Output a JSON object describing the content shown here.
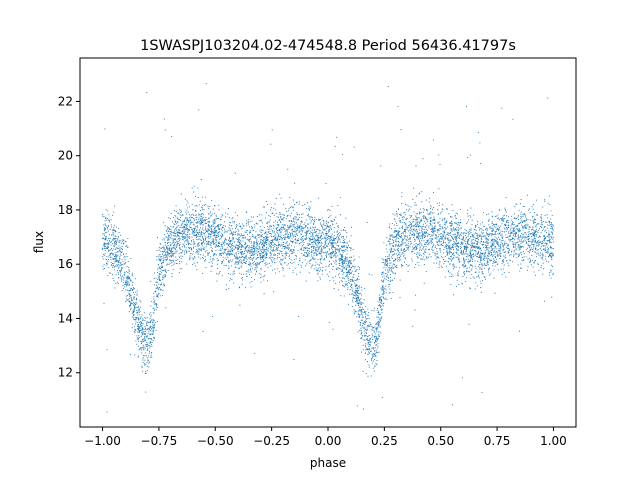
{
  "chart_data": {
    "type": "scatter",
    "title": "1SWASPJ103204.02-474548.8 Period 56436.41797s",
    "xlabel": "phase",
    "ylabel": "flux",
    "xlim": [
      -1.1,
      1.1
    ],
    "ylim": [
      10.0,
      23.6
    ],
    "xticks": [
      -1.0,
      -0.75,
      -0.5,
      -0.25,
      0.0,
      0.25,
      0.5,
      0.75,
      1.0
    ],
    "xtick_labels": [
      "−1.00",
      "−0.75",
      "−0.50",
      "−0.25",
      "0.00",
      "0.25",
      "0.50",
      "0.75",
      "1.00"
    ],
    "yticks": [
      12,
      14,
      16,
      18,
      20,
      22
    ],
    "ytick_labels": [
      "12",
      "14",
      "16",
      "18",
      "20",
      "22"
    ],
    "grid": false,
    "legend": "none",
    "marker_color": "#1f77b4",
    "series": [
      {
        "light_curve": {
          "phase": [
            -1.0,
            -0.95,
            -0.9,
            -0.85,
            -0.82,
            -0.8,
            -0.78,
            -0.75,
            -0.7,
            -0.65,
            -0.6,
            -0.55,
            -0.5,
            -0.45,
            -0.4,
            -0.35,
            -0.3,
            -0.25,
            -0.2,
            -0.15,
            -0.1,
            -0.05,
            0.0,
            0.05,
            0.1,
            0.15,
            0.18,
            0.2,
            0.22,
            0.25,
            0.3,
            0.35,
            0.4,
            0.45,
            0.5,
            0.55,
            0.6,
            0.65,
            0.7,
            0.75,
            0.8,
            0.85,
            0.9,
            0.95,
            1.0
          ],
          "flux": [
            16.9,
            16.6,
            15.8,
            14.2,
            13.2,
            12.9,
            13.6,
            15.6,
            16.8,
            17.1,
            17.2,
            17.2,
            17.0,
            16.8,
            16.6,
            16.5,
            16.6,
            16.8,
            17.0,
            17.1,
            17.0,
            16.6,
            16.9,
            16.5,
            15.8,
            14.2,
            13.2,
            12.9,
            13.6,
            15.6,
            16.8,
            17.1,
            17.2,
            17.2,
            17.0,
            16.8,
            16.6,
            16.5,
            16.6,
            16.8,
            17.0,
            17.1,
            17.0,
            16.9,
            16.9
          ],
          "scatter": 0.55
        }
      }
    ]
  }
}
